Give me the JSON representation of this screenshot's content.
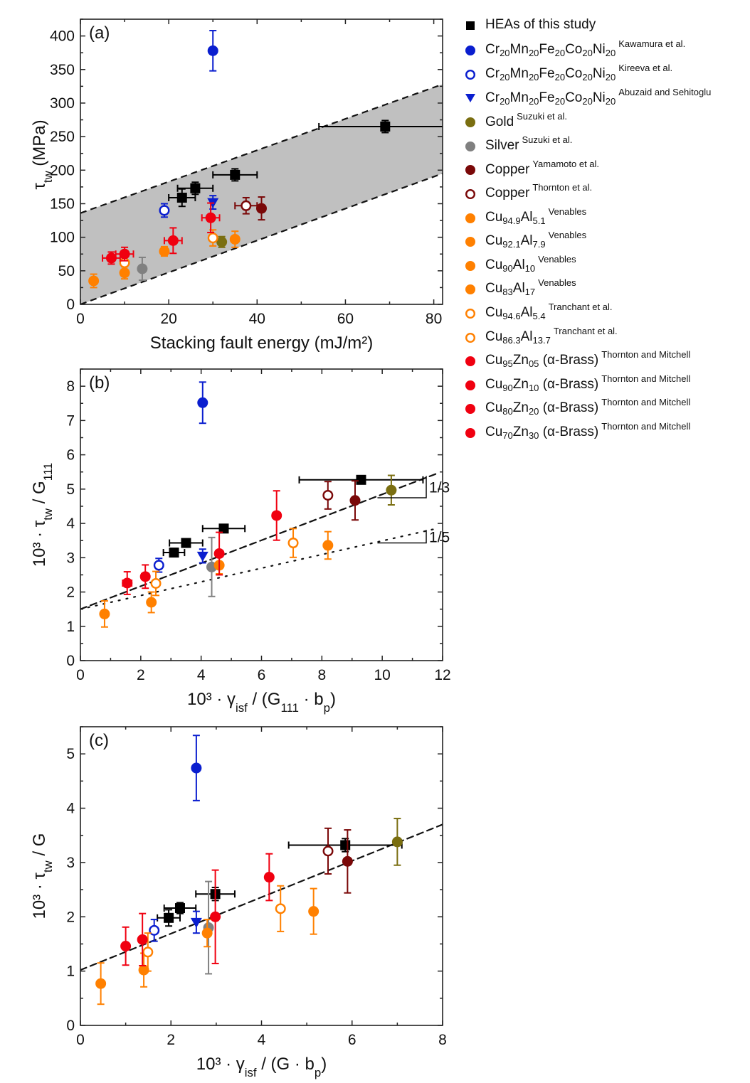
{
  "legend": {
    "series": [
      {
        "id": "hea",
        "label": "HEAs of this study",
        "ref": "",
        "marker": "square",
        "color": "#000000",
        "filled": true
      },
      {
        "id": "cantor_kaw",
        "label": "Cr<sub>20</sub>Mn<sub>20</sub>Fe<sub>20</sub>Co<sub>20</sub>Ni<sub>20</sub>",
        "ref": "Kawamura et al.",
        "marker": "circle",
        "color": "#0a1ecf",
        "filled": true
      },
      {
        "id": "cantor_kir",
        "label": "Cr<sub>20</sub>Mn<sub>20</sub>Fe<sub>20</sub>Co<sub>20</sub>Ni<sub>20</sub>",
        "ref": "Kireeva et al.",
        "marker": "circle",
        "color": "#0a1ecf",
        "filled": false
      },
      {
        "id": "cantor_abu",
        "label": "Cr<sub>20</sub>Mn<sub>20</sub>Fe<sub>20</sub>Co<sub>20</sub>Ni<sub>20</sub>",
        "ref": "Abuzaid and Sehitoglu",
        "marker": "triangle-down",
        "color": "#0a1ecf",
        "filled": true
      },
      {
        "id": "gold",
        "label": "Gold",
        "ref": "Suzuki et al.",
        "marker": "circle",
        "color": "#7a6e10",
        "filled": true
      },
      {
        "id": "silver",
        "label": "Silver",
        "ref": "Suzuki et al.",
        "marker": "circle",
        "color": "#808080",
        "filled": true
      },
      {
        "id": "cu_yam",
        "label": "Copper",
        "ref": "Yamamoto et al.",
        "marker": "circle",
        "color": "#7a0808",
        "filled": true
      },
      {
        "id": "cu_thor",
        "label": "Copper",
        "ref": "Thornton et al.",
        "marker": "circle",
        "color": "#7a0808",
        "filled": false
      },
      {
        "id": "cual51",
        "label": "Cu<sub>94.9</sub>Al<sub>5.1</sub>",
        "ref": "Venables",
        "marker": "circle",
        "color": "#ff8000",
        "filled": true
      },
      {
        "id": "cual79",
        "label": "Cu<sub>92.1</sub>Al<sub>7.9</sub>",
        "ref": "Venables",
        "marker": "circle",
        "color": "#ff8000",
        "filled": true
      },
      {
        "id": "cual10",
        "label": "Cu<sub>90</sub>Al<sub>10</sub>",
        "ref": "Venables",
        "marker": "circle",
        "color": "#ff8000",
        "filled": true
      },
      {
        "id": "cual17",
        "label": "Cu<sub>83</sub>Al<sub>17</sub>",
        "ref": "Venables",
        "marker": "circle",
        "color": "#ff8000",
        "filled": true
      },
      {
        "id": "cual54",
        "label": "Cu<sub>94.6</sub>Al<sub>5.4</sub>",
        "ref": "Tranchant et al.",
        "marker": "circle",
        "color": "#ff8000",
        "filled": false
      },
      {
        "id": "cual137",
        "label": "Cu<sub>86.3</sub>Al<sub>13.7</sub>",
        "ref": "Tranchant et al.",
        "marker": "circle",
        "color": "#ff8000",
        "filled": false
      },
      {
        "id": "brass05",
        "label": "Cu<sub>95</sub>Zn<sub>05</sub> (α-Brass)",
        "ref": "Thornton and Mitchell",
        "marker": "circle",
        "color": "#f00010",
        "filled": true
      },
      {
        "id": "brass10",
        "label": "Cu<sub>90</sub>Zn<sub>10</sub> (α-Brass)",
        "ref": "Thornton and Mitchell",
        "marker": "circle",
        "color": "#f00010",
        "filled": true
      },
      {
        "id": "brass20",
        "label": "Cu<sub>80</sub>Zn<sub>20</sub> (α-Brass)",
        "ref": "Thornton and Mitchell",
        "marker": "circle",
        "color": "#f00010",
        "filled": true
      },
      {
        "id": "brass30",
        "label": "Cu<sub>70</sub>Zn<sub>30</sub> (α-Brass)",
        "ref": "Thornton and Mitchell",
        "marker": "circle",
        "color": "#f00010",
        "filled": true
      }
    ]
  },
  "chart_data": [
    {
      "type": "scatter",
      "panel_label": "(a)",
      "xlabel": "Stacking fault energy (mJ/m²)",
      "ylabel": "τ_tw (MPa)",
      "xlim": [
        0,
        82
      ],
      "ylim": [
        0,
        425
      ],
      "xticks": [
        0,
        20,
        40,
        60,
        80
      ],
      "yticks": [
        0,
        50,
        100,
        150,
        200,
        250,
        300,
        350,
        400
      ],
      "band": {
        "lower": {
          "x": [
            0,
            82
          ],
          "y": [
            0,
            195
          ]
        },
        "upper": {
          "x": [
            0,
            82
          ],
          "y": [
            136,
            328
          ]
        },
        "fill": "#c0c0c0"
      },
      "points": [
        {
          "s": "hea",
          "x": 23,
          "y": 159,
          "xerr": 3,
          "yerr": 13
        },
        {
          "s": "hea",
          "x": 26,
          "y": 173,
          "xerr": 4,
          "yerr": 9
        },
        {
          "s": "hea",
          "x": 35,
          "y": 193,
          "xerr": 5,
          "yerr": 9
        },
        {
          "s": "hea",
          "x": 69,
          "y": 265,
          "xerr": 15,
          "yerr": 9
        },
        {
          "s": "cantor_kaw",
          "x": 30,
          "y": 378,
          "yerr": 30
        },
        {
          "s": "cantor_kir",
          "x": 19,
          "y": 140,
          "yerr": 10
        },
        {
          "s": "cantor_abu",
          "x": 30,
          "y": 152,
          "yerr": 10
        },
        {
          "s": "gold",
          "x": 32,
          "y": 93,
          "yerr": 8
        },
        {
          "s": "silver",
          "x": 14,
          "y": 53,
          "yerr": 17
        },
        {
          "s": "cu_yam",
          "x": 41,
          "y": 143,
          "yerr": 17
        },
        {
          "s": "cu_thor",
          "x": 37.5,
          "y": 147,
          "xerr": 2.5,
          "yerr": 12
        },
        {
          "s": "cual51",
          "x": 35,
          "y": 97,
          "yerr": 12
        },
        {
          "s": "cual79",
          "x": 19,
          "y": 79,
          "yerr": 7
        },
        {
          "s": "cual10",
          "x": 10,
          "y": 47,
          "yerr": 9
        },
        {
          "s": "cual17",
          "x": 3,
          "y": 35,
          "yerr": 10
        },
        {
          "s": "cual54",
          "x": 30,
          "y": 99,
          "yerr": 12
        },
        {
          "s": "cual137",
          "x": 10,
          "y": 62,
          "yerr": 10
        },
        {
          "s": "brass05",
          "x": 29.5,
          "y": 129,
          "xerr": 2,
          "yerr": 22
        },
        {
          "s": "brass10",
          "x": 21,
          "y": 95,
          "xerr": 2,
          "yerr": 19
        },
        {
          "s": "brass20",
          "x": 10,
          "y": 75,
          "xerr": 2,
          "yerr": 10
        },
        {
          "s": "brass30",
          "x": 7,
          "y": 69,
          "xerr": 2,
          "yerr": 9
        }
      ]
    },
    {
      "type": "scatter",
      "panel_label": "(b)",
      "xlabel": "10³ · γ_isf / (G_111 · b_p)",
      "ylabel": "10³ · τ_tw / G_111",
      "xlim": [
        0,
        12
      ],
      "ylim": [
        0,
        8.5
      ],
      "xticks": [
        0,
        2,
        4,
        6,
        8,
        10,
        12
      ],
      "yticks": [
        0,
        1,
        2,
        3,
        4,
        5,
        6,
        7,
        8
      ],
      "lines": [
        {
          "style": "dashed",
          "x": [
            0,
            11.8
          ],
          "y": [
            1.5,
            5.45
          ],
          "slope_label": "1/3"
        },
        {
          "style": "dotted",
          "x": [
            0,
            11.8
          ],
          "y": [
            1.5,
            3.85
          ],
          "slope_label": "1/5"
        }
      ],
      "points": [
        {
          "s": "hea",
          "x": 3.1,
          "y": 3.15,
          "xerr": 0.35,
          "yerr": 0.12
        },
        {
          "s": "hea",
          "x": 3.5,
          "y": 3.43,
          "xerr": 0.55,
          "yerr": 0.08
        },
        {
          "s": "hea",
          "x": 4.75,
          "y": 3.85,
          "xerr": 0.7,
          "yerr": 0.1
        },
        {
          "s": "hea",
          "x": 9.3,
          "y": 5.27,
          "xerr": 2.05,
          "yerr": 0.08
        },
        {
          "s": "cantor_kaw",
          "x": 4.05,
          "y": 7.52,
          "yerr": 0.6
        },
        {
          "s": "cantor_kir",
          "x": 2.6,
          "y": 2.78,
          "yerr": 0.2
        },
        {
          "s": "cantor_abu",
          "x": 4.05,
          "y": 3.05,
          "yerr": 0.2
        },
        {
          "s": "gold",
          "x": 10.3,
          "y": 4.97,
          "yerr": 0.43
        },
        {
          "s": "silver",
          "x": 4.35,
          "y": 2.73,
          "yerr": 0.86
        },
        {
          "s": "cu_yam",
          "x": 9.1,
          "y": 4.67,
          "yerr": 0.57
        },
        {
          "s": "cu_thor",
          "x": 8.2,
          "y": 4.82,
          "xerr": 0.12,
          "yerr": 0.4
        },
        {
          "s": "cual51",
          "x": 8.2,
          "y": 3.36,
          "yerr": 0.4
        },
        {
          "s": "cual79",
          "x": 4.6,
          "y": 2.78,
          "yerr": 0.25
        },
        {
          "s": "cual10",
          "x": 2.35,
          "y": 1.7,
          "yerr": 0.3
        },
        {
          "s": "cual17",
          "x": 0.8,
          "y": 1.36,
          "yerr": 0.38
        },
        {
          "s": "cual54",
          "x": 7.05,
          "y": 3.43,
          "yerr": 0.42
        },
        {
          "s": "cual137",
          "x": 2.5,
          "y": 2.25,
          "yerr": 0.35
        },
        {
          "s": "brass05",
          "x": 6.5,
          "y": 4.23,
          "xerr": 0.12,
          "yerr": 0.72
        },
        {
          "s": "brass10",
          "x": 4.6,
          "y": 3.12,
          "xerr": 0.12,
          "yerr": 0.62
        },
        {
          "s": "brass20",
          "x": 2.15,
          "y": 2.45,
          "xerr": 0.12,
          "yerr": 0.34
        },
        {
          "s": "brass30",
          "x": 1.55,
          "y": 2.26,
          "xerr": 0.15,
          "yerr": 0.33
        }
      ]
    },
    {
      "type": "scatter",
      "panel_label": "(c)",
      "xlabel": "10³ · γ_isf / (G · b_p)",
      "ylabel": "10³ · τ_tw / G",
      "xlim": [
        0,
        8
      ],
      "ylim": [
        0,
        5.5
      ],
      "xticks": [
        0,
        2,
        4,
        6,
        8
      ],
      "yticks": [
        0,
        1,
        2,
        3,
        4,
        5
      ],
      "lines": [
        {
          "style": "dashed",
          "x": [
            0,
            8
          ],
          "y": [
            1.02,
            3.7
          ]
        }
      ],
      "points": [
        {
          "s": "hea",
          "x": 1.95,
          "y": 1.98,
          "xerr": 0.25,
          "yerr": 0.15
        },
        {
          "s": "hea",
          "x": 2.2,
          "y": 2.16,
          "xerr": 0.35,
          "yerr": 0.1
        },
        {
          "s": "hea",
          "x": 2.98,
          "y": 2.42,
          "xerr": 0.43,
          "yerr": 0.12
        },
        {
          "s": "hea",
          "x": 5.85,
          "y": 3.32,
          "xerr": 1.25,
          "yerr": 0.12
        },
        {
          "s": "cantor_kaw",
          "x": 2.56,
          "y": 4.74,
          "yerr": 0.6
        },
        {
          "s": "cantor_kir",
          "x": 1.63,
          "y": 1.75,
          "yerr": 0.2
        },
        {
          "s": "cantor_abu",
          "x": 2.56,
          "y": 1.9,
          "yerr": 0.2
        },
        {
          "s": "gold",
          "x": 7.0,
          "y": 3.38,
          "yerr": 0.43
        },
        {
          "s": "silver",
          "x": 2.83,
          "y": 1.8,
          "yerr": 0.85
        },
        {
          "s": "cu_yam",
          "x": 5.9,
          "y": 3.02,
          "yerr": 0.58
        },
        {
          "s": "cu_thor",
          "x": 5.47,
          "y": 3.21,
          "yerr": 0.42
        },
        {
          "s": "cual51",
          "x": 5.15,
          "y": 2.1,
          "yerr": 0.42
        },
        {
          "s": "cual79",
          "x": 2.8,
          "y": 1.7,
          "yerr": 0.25
        },
        {
          "s": "cual10",
          "x": 1.4,
          "y": 1.02,
          "yerr": 0.31
        },
        {
          "s": "cual17",
          "x": 0.45,
          "y": 0.77,
          "yerr": 0.38
        },
        {
          "s": "cual54",
          "x": 4.42,
          "y": 2.15,
          "yerr": 0.42
        },
        {
          "s": "cual137",
          "x": 1.49,
          "y": 1.35,
          "yerr": 0.35
        },
        {
          "s": "brass05",
          "x": 4.17,
          "y": 2.73,
          "yerr": 0.43
        },
        {
          "s": "brass10",
          "x": 2.98,
          "y": 2.0,
          "yerr": 0.86
        },
        {
          "s": "brass20",
          "x": 1.37,
          "y": 1.58,
          "yerr": 0.48
        },
        {
          "s": "brass30",
          "x": 1.0,
          "y": 1.46,
          "yerr": 0.35
        }
      ]
    }
  ]
}
